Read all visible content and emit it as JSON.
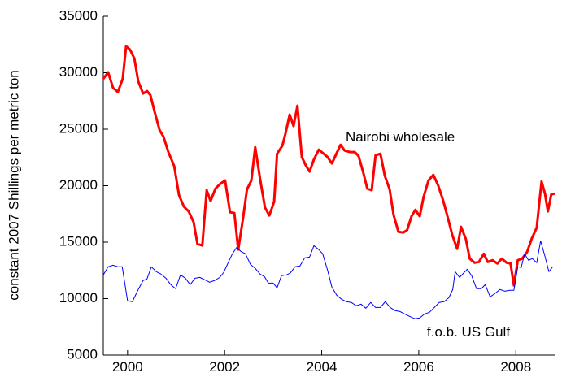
{
  "chart_data": {
    "type": "line",
    "y_label": "constant 2007 Shillings per metric ton",
    "xlim": [
      1999.5,
      2008.8
    ],
    "xticks": [
      2000,
      2002,
      2004,
      2006,
      2008
    ],
    "ylim": [
      5000,
      35000
    ],
    "yticks": [
      5000,
      10000,
      15000,
      20000,
      25000,
      30000,
      35000
    ],
    "grid": false,
    "series": [
      {
        "name": "Nairobi wholesale",
        "color": "#ff0000",
        "x": [
          1999.5,
          1999.6,
          1999.7,
          1999.8,
          1999.9,
          1999.97,
          2000.05,
          2000.14,
          2000.22,
          2000.32,
          2000.4,
          2000.47,
          2000.56,
          2000.66,
          2000.74,
          2000.84,
          2000.96,
          2001.06,
          2001.16,
          2001.26,
          2001.36,
          2001.44,
          2001.54,
          2001.63,
          2001.71,
          2001.81,
          2001.91,
          2002.01,
          2002.11,
          2002.2,
          2002.28,
          2002.38,
          2002.46,
          2002.55,
          2002.63,
          2002.73,
          2002.83,
          2002.92,
          2003.02,
          2003.08,
          2003.19,
          2003.25,
          2003.34,
          2003.42,
          2003.5,
          2003.59,
          2003.67,
          2003.75,
          2003.84,
          2003.94,
          2004.04,
          2004.12,
          2004.21,
          2004.31,
          2004.39,
          2004.47,
          2004.58,
          2004.68,
          2004.76,
          2004.86,
          2004.94,
          2005.03,
          2005.11,
          2005.21,
          2005.3,
          2005.4,
          2005.48,
          2005.58,
          2005.68,
          2005.76,
          2005.85,
          2005.93,
          2006.02,
          2006.1,
          2006.2,
          2006.3,
          2006.4,
          2006.5,
          2006.6,
          2006.69,
          2006.79,
          2006.87,
          2006.97,
          2007.05,
          2007.15,
          2007.24,
          2007.34,
          2007.42,
          2007.52,
          2007.62,
          2007.71,
          2007.81,
          2007.89,
          2007.96,
          2008.04,
          2008.13,
          2008.23,
          2008.33,
          2008.43,
          2008.53,
          2008.6,
          2008.66,
          2008.73,
          2008.8
        ],
        "values": [
          29460,
          30040,
          28670,
          28300,
          29460,
          32340,
          32050,
          31260,
          29240,
          28160,
          28380,
          28020,
          26500,
          24920,
          24340,
          22980,
          21750,
          19160,
          18150,
          17720,
          16780,
          14840,
          14700,
          19600,
          18650,
          19740,
          20170,
          20460,
          17650,
          17580,
          14340,
          17140,
          19670,
          20460,
          23410,
          20600,
          18080,
          17360,
          18580,
          22830,
          23550,
          24560,
          26290,
          25280,
          27080,
          22540,
          21820,
          21250,
          22330,
          23190,
          22830,
          22540,
          21970,
          22900,
          23620,
          23120,
          22980,
          22980,
          22620,
          21100,
          19740,
          19600,
          22690,
          22830,
          20880,
          19670,
          17430,
          15920,
          15850,
          16070,
          17290,
          17860,
          17290,
          19020,
          20460,
          20960,
          20020,
          18720,
          17140,
          15630,
          14410,
          16360,
          15270,
          13540,
          13180,
          13250,
          13970,
          13250,
          13400,
          13110,
          13540,
          13180,
          13110,
          11170,
          13400,
          13540,
          14120,
          15340,
          16280,
          20380,
          19300,
          17720,
          19230,
          19300
        ]
      },
      {
        "name": "f.o.b. US Gulf",
        "color": "#0000ff",
        "x": [
          1999.5,
          1999.6,
          1999.7,
          1999.8,
          1999.89,
          2000.0,
          2000.1,
          2000.22,
          2000.32,
          2000.4,
          2000.49,
          2000.59,
          2000.69,
          2000.79,
          2000.89,
          2000.99,
          2001.09,
          2001.19,
          2001.29,
          2001.39,
          2001.49,
          2001.59,
          2001.69,
          2001.79,
          2001.9,
          2001.98,
          2002.08,
          2002.16,
          2002.25,
          2002.33,
          2002.43,
          2002.53,
          2002.63,
          2002.73,
          2002.82,
          2002.9,
          2003.0,
          2003.08,
          2003.17,
          2003.27,
          2003.35,
          2003.45,
          2003.55,
          2003.65,
          2003.75,
          2003.84,
          2003.94,
          2004.02,
          2004.12,
          2004.21,
          2004.31,
          2004.41,
          2004.51,
          2004.61,
          2004.71,
          2004.81,
          2004.91,
          2005.01,
          2005.11,
          2005.21,
          2005.31,
          2005.41,
          2005.51,
          2005.61,
          2005.71,
          2005.81,
          2005.92,
          2006.02,
          2006.12,
          2006.22,
          2006.32,
          2006.42,
          2006.52,
          2006.62,
          2006.7,
          2006.75,
          2006.84,
          2006.92,
          2007.0,
          2007.09,
          2007.19,
          2007.29,
          2007.37,
          2007.47,
          2007.57,
          2007.67,
          2007.77,
          2007.87,
          2007.96,
          2008.04,
          2008.11,
          2008.18,
          2008.26,
          2008.34,
          2008.43,
          2008.51,
          2008.6,
          2008.68,
          2008.76
        ],
        "values": [
          12100,
          12820,
          12960,
          12820,
          12820,
          9800,
          9730,
          10810,
          11600,
          11740,
          12820,
          12390,
          12170,
          11810,
          11240,
          10880,
          12100,
          11810,
          11240,
          11810,
          11880,
          11670,
          11450,
          11600,
          11880,
          12320,
          13250,
          13970,
          14550,
          14190,
          13970,
          13040,
          12680,
          12170,
          11950,
          11380,
          11380,
          10950,
          12030,
          12100,
          12250,
          12820,
          12890,
          13610,
          13680,
          14690,
          14340,
          13970,
          12530,
          11020,
          10300,
          9940,
          9730,
          9660,
          9370,
          9510,
          9150,
          9660,
          9220,
          9220,
          9730,
          9220,
          8940,
          8860,
          8640,
          8430,
          8220,
          8290,
          8640,
          8790,
          9220,
          9660,
          9730,
          10080,
          10810,
          12390,
          11880,
          12250,
          12600,
          12030,
          10880,
          10880,
          11240,
          10160,
          10450,
          10810,
          10660,
          10740,
          10740,
          12820,
          12750,
          13970,
          13400,
          13540,
          13180,
          15120,
          13750,
          12390,
          12820
        ]
      }
    ]
  }
}
